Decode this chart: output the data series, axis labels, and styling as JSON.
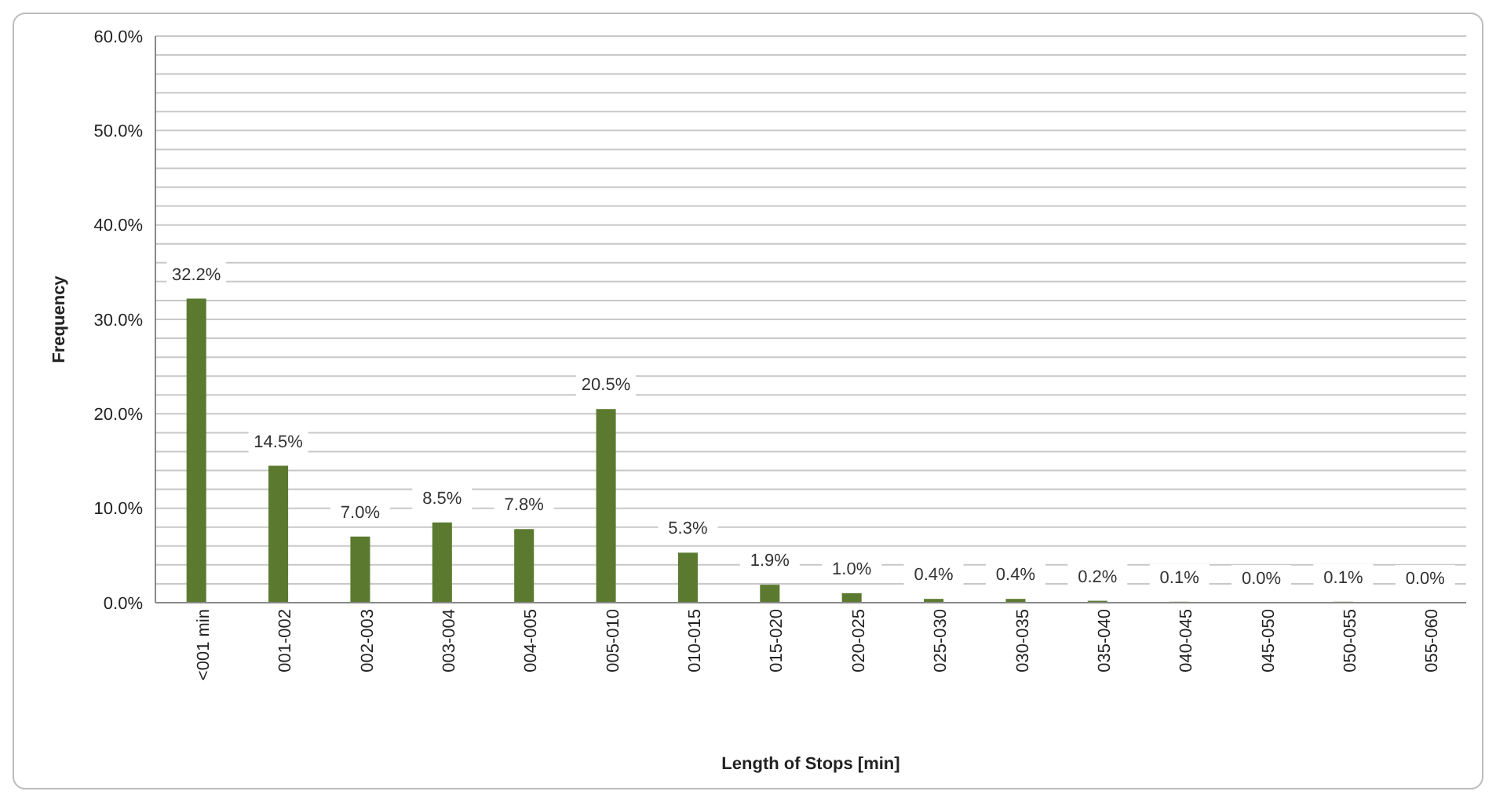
{
  "chart_data": {
    "type": "bar",
    "xlabel": "Length of Stops [min]",
    "ylabel": "Frequency",
    "categories": [
      "<001 min",
      "001-002",
      "002-003",
      "003-004",
      "004-005",
      "005-010",
      "010-015",
      "015-020",
      "020-025",
      "025-030",
      "030-035",
      "035-040",
      "040-045",
      "045-050",
      "050-055",
      "055-060"
    ],
    "values": [
      32.2,
      14.5,
      7.0,
      8.5,
      7.8,
      20.5,
      5.3,
      1.9,
      1.0,
      0.4,
      0.4,
      0.2,
      0.1,
      0.0,
      0.1,
      0.0
    ],
    "value_labels": [
      "32.2%",
      "14.5%",
      "7.0%",
      "8.5%",
      "7.8%",
      "20.5%",
      "5.3%",
      "1.9%",
      "1.0%",
      "0.4%",
      "0.4%",
      "0.2%",
      "0.1%",
      "0.0%",
      "0.1%",
      "0.0%"
    ],
    "color": "#5b7a2f",
    "ylim": [
      0,
      60
    ],
    "yticks": [
      {
        "value": 0,
        "label": "0.0%"
      },
      {
        "value": 2,
        "label": null
      },
      {
        "value": 4,
        "label": null
      },
      {
        "value": 6,
        "label": null
      },
      {
        "value": 8,
        "label": null
      },
      {
        "value": 10,
        "label": "10.0%"
      },
      {
        "value": 12,
        "label": null
      },
      {
        "value": 14,
        "label": null
      },
      {
        "value": 16,
        "label": null
      },
      {
        "value": 18,
        "label": null
      },
      {
        "value": 20,
        "label": "20.0%"
      },
      {
        "value": 22,
        "label": null
      },
      {
        "value": 24,
        "label": null
      },
      {
        "value": 26,
        "label": null
      },
      {
        "value": 28,
        "label": null
      },
      {
        "value": 30,
        "label": "30.0%"
      },
      {
        "value": 32,
        "label": null
      },
      {
        "value": 34,
        "label": null
      },
      {
        "value": 36,
        "label": null
      },
      {
        "value": 38,
        "label": null
      },
      {
        "value": 40,
        "label": "40.0%"
      },
      {
        "value": 42,
        "label": null
      },
      {
        "value": 44,
        "label": null
      },
      {
        "value": 46,
        "label": null
      },
      {
        "value": 48,
        "label": null
      },
      {
        "value": 50,
        "label": "50.0%"
      },
      {
        "value": 52,
        "label": null
      },
      {
        "value": 54,
        "label": null
      },
      {
        "value": 56,
        "label": null
      },
      {
        "value": 58,
        "label": null
      },
      {
        "value": 60,
        "label": "60.0%"
      }
    ],
    "grid": "y"
  }
}
